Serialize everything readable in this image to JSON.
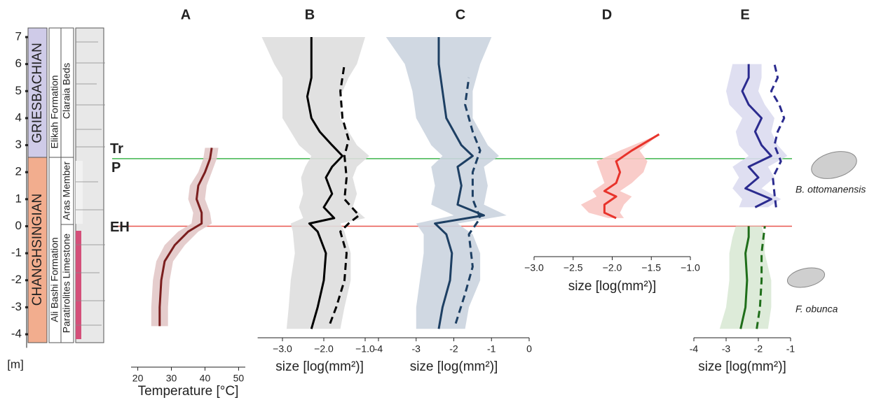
{
  "y_axis": {
    "label": "[m]",
    "ylim": [
      7,
      -4.5
    ],
    "yticks": [
      7,
      6,
      5,
      4,
      3,
      2,
      1,
      0,
      -1,
      -2,
      -3,
      -4
    ]
  },
  "column": {
    "stages": [
      "GRIESBACHIAN",
      "CHANGHSINGIAN"
    ],
    "formations": [
      "Elikah Formation",
      "Ali Bashi Formation"
    ],
    "units": [
      "Claraia Beds",
      "Aras Member",
      "Paratirolites Limestone"
    ]
  },
  "boundaries": [
    {
      "labels": [
        "Tr",
        "P"
      ],
      "height": 2.5,
      "color": "#3fb54d"
    },
    {
      "labels": [
        "EH"
      ],
      "height": 0,
      "color": "#e8574f"
    }
  ],
  "chart_data": [
    {
      "type": "line",
      "title": "A",
      "xlabel": "Temperature [°C]",
      "xlim": [
        18,
        52
      ],
      "xticks": [
        20,
        30,
        40,
        50
      ],
      "series": [
        {
          "color": "#7b1e1e",
          "band_color": "#e2c8c8",
          "dashed": false,
          "heights": [
            -3.7,
            -3,
            -2,
            -1.3,
            -0.7,
            -0.2,
            0.1,
            0.5,
            1,
            1.5,
            2,
            2.5,
            2.9
          ],
          "values": [
            26.5,
            26.5,
            27,
            28,
            31,
            35,
            39,
            39,
            37.5,
            38,
            40,
            41.5,
            42
          ],
          "lower": [
            24,
            24,
            24.5,
            25.5,
            28,
            32,
            36,
            36.5,
            35,
            35.5,
            38,
            39.5,
            40
          ],
          "upper": [
            29,
            29,
            29.5,
            30.5,
            34,
            38,
            42,
            41.5,
            40,
            40.5,
            42,
            43.5,
            44
          ]
        }
      ]
    },
    {
      "type": "line",
      "title": "B",
      "xlabel": "size [log(mm²)]",
      "xlim": [
        -3.6,
        -0.6
      ],
      "xticks": [
        {
          "value": -3,
          "label": "−3.0"
        },
        {
          "value": -2,
          "label": "−2.0"
        },
        {
          "value": -1,
          "label": "−1.0"
        }
      ],
      "series": [
        {
          "color": "#000000",
          "band_color": "#dedede",
          "dashed": false,
          "heights": [
            -3.8,
            -3,
            -2,
            -1,
            -0.2,
            0.1,
            0.3,
            0.7,
            1.2,
            1.8,
            2.2,
            2.6,
            3,
            3.5,
            4,
            4.8,
            5.5,
            6,
            7
          ],
          "values": [
            -2.3,
            -2.15,
            -2.0,
            -1.95,
            -2.15,
            -2.35,
            -1.75,
            -2.0,
            -1.8,
            -1.95,
            -1.8,
            -1.55,
            -1.8,
            -2.1,
            -2.3,
            -2.4,
            -2.3,
            -2.3,
            -2.3
          ],
          "lower": [
            -2.9,
            -2.85,
            -2.8,
            -2.7,
            -2.75,
            -2.8,
            -2.5,
            -2.6,
            -2.5,
            -2.55,
            -2.45,
            -2.3,
            -2.6,
            -2.8,
            -3.0,
            -3.0,
            -3.0,
            -3.2,
            -3.5
          ],
          "upper": [
            -1.6,
            -1.5,
            -1.35,
            -1.35,
            -1.5,
            -1.6,
            -1.0,
            -1.3,
            -1.2,
            -1.3,
            -1.2,
            -0.9,
            -1.2,
            -1.4,
            -1.6,
            -1.6,
            -1.4,
            -1.2,
            -1.0
          ]
        },
        {
          "color": "#000000",
          "dashed": true,
          "heights": [
            -3.6,
            -3,
            -2,
            -1,
            -0.2,
            0.1,
            0.4,
            1,
            1.8,
            2.6,
            3.2,
            4,
            5,
            6
          ],
          "values": [
            -1.85,
            -1.7,
            -1.5,
            -1.45,
            -1.6,
            -1.4,
            -1.15,
            -1.5,
            -1.45,
            -1.5,
            -1.4,
            -1.55,
            -1.6,
            -1.5
          ]
        }
      ]
    },
    {
      "type": "line",
      "title": "C",
      "xlabel": "size [log(mm²)]",
      "xlim": [
        -4,
        0
      ],
      "xticks": [
        -4,
        -3,
        -2,
        -1,
        0
      ],
      "series": [
        {
          "color": "#1d3f63",
          "band_color": "#cbd4df",
          "dashed": false,
          "heights": [
            -3.8,
            -3,
            -2,
            -1,
            -0.3,
            0.1,
            0.4,
            0.8,
            1.5,
            2.2,
            2.6,
            3,
            4,
            5,
            6,
            7
          ],
          "values": [
            -2.4,
            -2.3,
            -2.1,
            -2.05,
            -2.2,
            -2.5,
            -1.2,
            -1.9,
            -1.8,
            -1.9,
            -1.5,
            -1.8,
            -2.2,
            -2.3,
            -2.4,
            -2.4
          ],
          "lower": [
            -3.0,
            -3.0,
            -2.9,
            -2.8,
            -2.8,
            -3.0,
            -2.0,
            -2.6,
            -2.5,
            -2.6,
            -2.3,
            -2.6,
            -3.0,
            -3.1,
            -3.3,
            -3.8
          ],
          "upper": [
            -1.7,
            -1.6,
            -1.3,
            -1.3,
            -1.5,
            -1.9,
            -0.6,
            -1.2,
            -1.1,
            -1.2,
            -0.8,
            -1.1,
            -1.5,
            -1.5,
            -1.3,
            -1.0
          ]
        },
        {
          "color": "#1d3f63",
          "dashed": true,
          "heights": [
            -3.6,
            -2.5,
            -1.5,
            -0.3,
            0.3,
            1,
            2,
            2.8,
            3.5,
            4.5,
            5.5
          ],
          "values": [
            -1.95,
            -1.7,
            -1.5,
            -1.6,
            -1.3,
            -1.5,
            -1.5,
            -1.3,
            -1.5,
            -1.7,
            -1.6
          ]
        }
      ]
    },
    {
      "type": "line",
      "title": "D",
      "xlabel": "size [log(mm²)]",
      "xlim": [
        -3,
        -1
      ],
      "xticks": [
        {
          "value": -3,
          "label": "−3.0"
        },
        {
          "value": -2.5,
          "label": "−2.5"
        },
        {
          "value": -2,
          "label": "−2.0"
        },
        {
          "value": -1.5,
          "label": "−1.5"
        },
        {
          "value": -1,
          "label": "−1.0"
        }
      ],
      "series": [
        {
          "color": "#e8332b",
          "band_color": "#f8c6c3",
          "dashed": false,
          "heights": [
            0.3,
            0.5,
            0.8,
            1.1,
            1.3,
            1.6,
            2.0,
            2.4,
            2.8,
            3.4
          ],
          "values": [
            -1.95,
            -2.1,
            -2.1,
            -1.95,
            -2.1,
            -1.95,
            -1.9,
            -1.95,
            -1.75,
            -1.4
          ],
          "lower": [
            -2.05,
            -2.3,
            -2.4,
            -2.2,
            -2.25,
            -2.1,
            -2.15,
            -2.2,
            -1.9,
            -1.4
          ],
          "upper": [
            -1.85,
            -1.9,
            -1.85,
            -1.75,
            -1.9,
            -1.75,
            -1.6,
            -1.55,
            -1.65,
            -1.4
          ]
        }
      ]
    },
    {
      "type": "line",
      "title": "E",
      "xlabel": "size [log(mm²)]",
      "xlim": [
        -4,
        -1
      ],
      "xticks": [
        -4,
        -3,
        -2,
        -1
      ],
      "series": [
        {
          "name": "B. ottomanensis",
          "color": "#2b2b8f",
          "band_color": "#dcdcf0",
          "dashed": false,
          "heights": [
            0.7,
            1.0,
            1.4,
            1.8,
            2.2,
            2.6,
            3.0,
            3.5,
            4,
            4.5,
            5,
            5.5,
            6
          ],
          "values": [
            -2.1,
            -1.6,
            -2.4,
            -2.0,
            -2.3,
            -1.6,
            -1.9,
            -2.1,
            -1.9,
            -2.3,
            -2.5,
            -2.3,
            -2.3
          ],
          "lower": [
            -2.6,
            -2.5,
            -2.8,
            -2.6,
            -2.8,
            -2.3,
            -2.6,
            -2.7,
            -2.5,
            -2.9,
            -3.0,
            -2.9,
            -2.8
          ],
          "upper": [
            -1.7,
            -1.3,
            -1.9,
            -1.5,
            -1.7,
            -1.1,
            -1.4,
            -1.6,
            -1.5,
            -1.8,
            -2.0,
            -1.9,
            -1.9
          ]
        },
        {
          "color": "#2b2b8f",
          "dashed": true,
          "heights": [
            0.7,
            1.2,
            1.8,
            2.4,
            3,
            3.5,
            4,
            4.5,
            5,
            5.5,
            6
          ],
          "values": [
            -1.45,
            -1.5,
            -1.55,
            -1.3,
            -1.5,
            -1.4,
            -1.2,
            -1.35,
            -1.6,
            -1.4,
            -1.5
          ]
        },
        {
          "name": "F. obunca",
          "color": "#1f6e1a",
          "band_color": "#d9e9d5",
          "dashed": false,
          "heights": [
            -3.8,
            -3,
            -2,
            -1,
            -0.4,
            0
          ],
          "values": [
            -2.55,
            -2.4,
            -2.35,
            -2.4,
            -2.3,
            -2.3
          ],
          "lower": [
            -3.2,
            -3.0,
            -2.9,
            -2.9,
            -2.8,
            -2.7
          ],
          "upper": [
            -1.7,
            -1.6,
            -1.6,
            -1.8,
            -1.8,
            -1.9
          ]
        },
        {
          "color": "#1f6e1a",
          "dashed": true,
          "heights": [
            -3.8,
            -3,
            -2,
            -1,
            0
          ],
          "values": [
            -2.05,
            -1.95,
            -1.9,
            -1.9,
            -1.8
          ]
        }
      ]
    }
  ]
}
